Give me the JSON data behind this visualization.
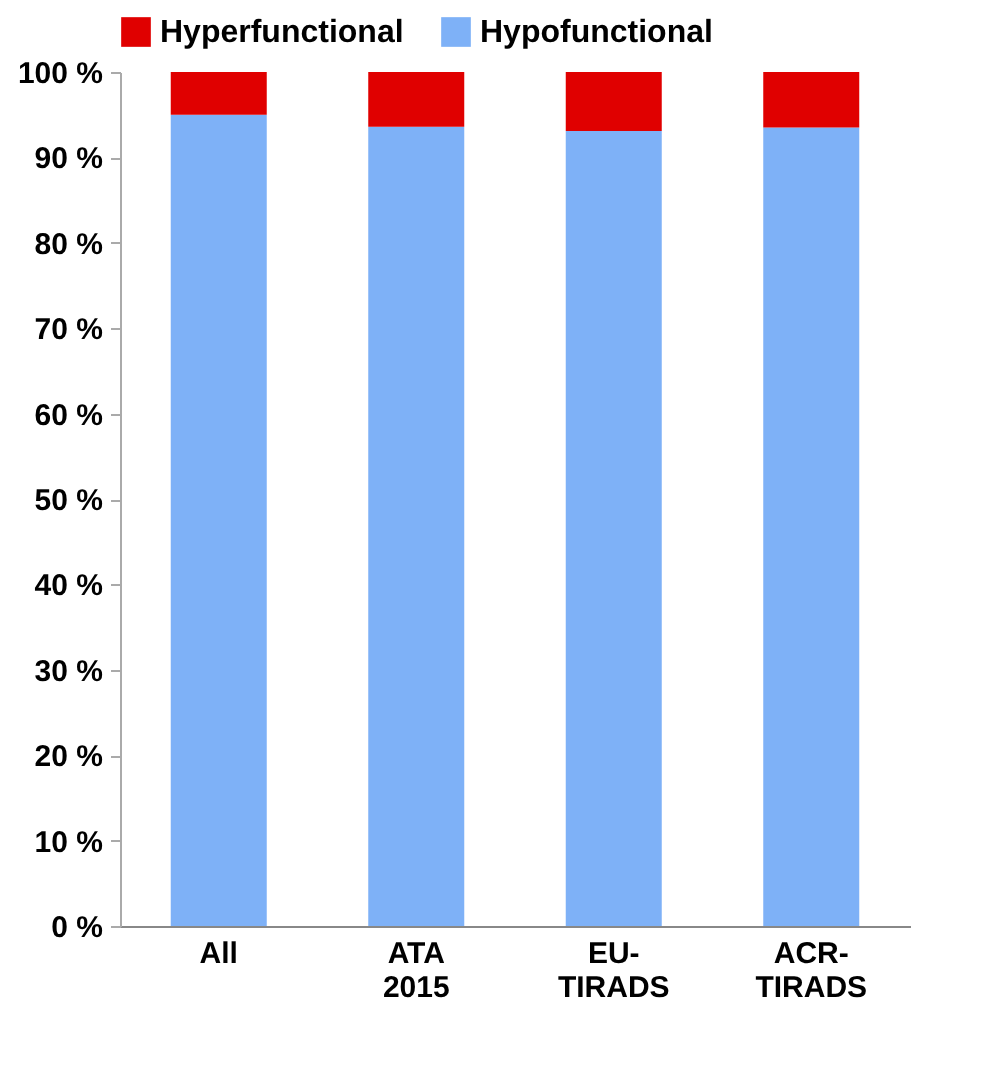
{
  "chart_data": {
    "type": "bar",
    "stacked": true,
    "categories": [
      "All",
      "ATA 2015",
      "EU-TIRADS",
      "ACR-TIRADS"
    ],
    "series": [
      {
        "name": "Hypofunctional",
        "color": "#7eb1f7",
        "values": [
          95,
          93.6,
          93.1,
          93.5
        ]
      },
      {
        "name": "Hyperfunctional",
        "color": "#e00000",
        "values": [
          5,
          6.4,
          6.9,
          6.5
        ]
      }
    ],
    "ylim": [
      0,
      100
    ],
    "yticks": [
      {
        "value": 0,
        "label": "0 %"
      },
      {
        "value": 10,
        "label": "10 %"
      },
      {
        "value": 20,
        "label": "20 %"
      },
      {
        "value": 30,
        "label": "30 %"
      },
      {
        "value": 40,
        "label": "40 %"
      },
      {
        "value": 50,
        "label": "50 %"
      },
      {
        "value": 60,
        "label": "60 %"
      },
      {
        "value": 70,
        "label": "70 %"
      },
      {
        "value": 80,
        "label": "80 %"
      },
      {
        "value": 90,
        "label": "90 %"
      },
      {
        "value": 100,
        "label": "100 %"
      }
    ],
    "grid": false,
    "legend": "top"
  }
}
